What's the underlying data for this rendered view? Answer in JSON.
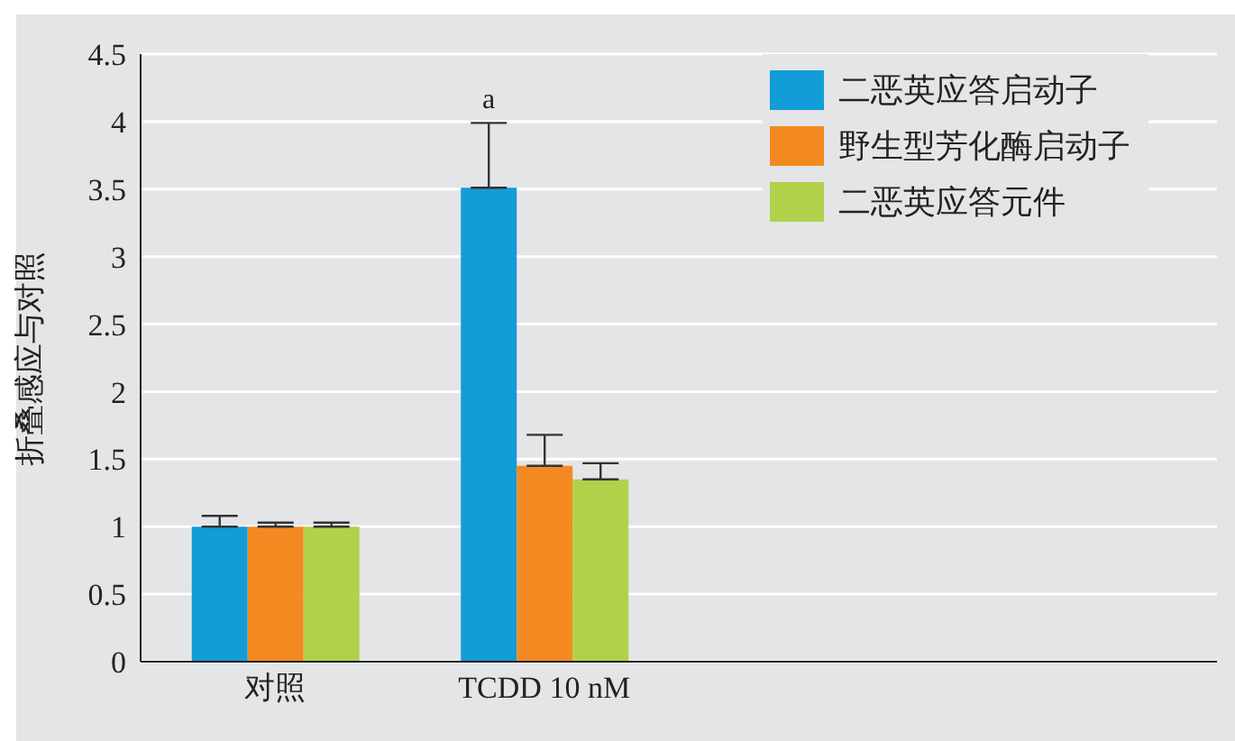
{
  "chart_data": {
    "type": "bar",
    "ylabel": "折叠感应与对照",
    "categories": [
      "对照",
      "TCDD 10 nM",
      null,
      null
    ],
    "series": [
      {
        "name": "二恶英应答启动子",
        "color": "#129cd8",
        "values": [
          1,
          3.51,
          null,
          null
        ],
        "errors": [
          [
            1,
            1.08
          ],
          [
            3.51,
            3.99
          ],
          null,
          null
        ]
      },
      {
        "name": "野生型芳化酶启动子",
        "color": "#f38a21",
        "values": [
          1,
          1.45,
          null,
          null
        ],
        "errors": [
          [
            1,
            1.03
          ],
          [
            1.45,
            1.68
          ],
          null,
          null
        ]
      },
      {
        "name": "二恶英应答元件",
        "color": "#b1d14b",
        "values": [
          1,
          1.35,
          null,
          null
        ],
        "errors": [
          [
            1,
            1.03
          ],
          [
            1.35,
            1.47
          ],
          null,
          null
        ]
      }
    ],
    "ylim": [
      0,
      4.5
    ],
    "yticks": [
      0,
      0.5,
      1,
      1.5,
      2,
      2.5,
      3,
      3.5,
      4,
      4.5
    ],
    "grid": "y",
    "legend": "top right",
    "annotations": [
      "a"
    ]
  }
}
